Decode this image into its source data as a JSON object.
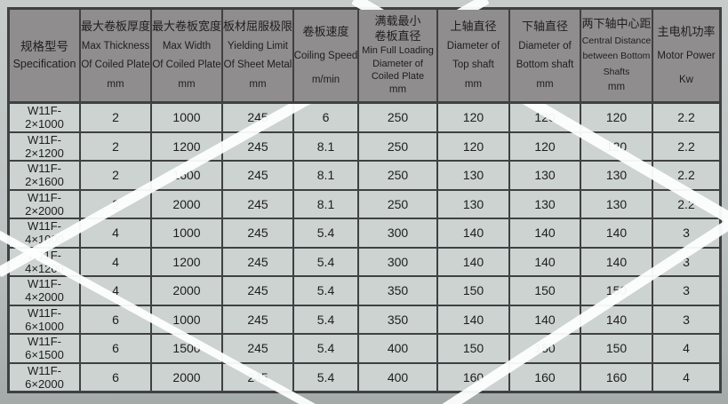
{
  "colors": {
    "page_bg_top": "#c7cccb",
    "page_bg_bottom": "#a4aaa9",
    "header_bg": "#908d8e",
    "cell_bg": "#ccd3d1",
    "border": "#3f4042",
    "text": "#1e1e1e",
    "stripe": "#fdfefe"
  },
  "table": {
    "columns": [
      {
        "key": "specification",
        "zh": [
          "规格型号"
        ],
        "en": [
          "Specification"
        ],
        "unit": ""
      },
      {
        "key": "max-thickness",
        "zh": [
          "最大卷板厚度"
        ],
        "en": [
          "Max Thickness",
          "Of Coiled Plate"
        ],
        "unit": "mm"
      },
      {
        "key": "max-width",
        "zh": [
          "最大卷板宽度"
        ],
        "en": [
          "Max Width",
          "Of Coiled Plate"
        ],
        "unit": "mm"
      },
      {
        "key": "yielding-limit",
        "zh": [
          "板材屈服极限"
        ],
        "en": [
          "Yielding Limit",
          "Of Sheet Metal"
        ],
        "unit": "mm"
      },
      {
        "key": "coiling-speed",
        "zh": [
          "卷板速度"
        ],
        "en": [
          "Coiling Speed"
        ],
        "unit": "m/min"
      },
      {
        "key": "min-coil-diameter",
        "zh": [
          "满载最小",
          "卷板直径"
        ],
        "en": [
          "Min Full Loading",
          "Diameter of",
          "Coiled Plate"
        ],
        "unit": "mm"
      },
      {
        "key": "top-shaft-diameter",
        "zh": [
          "上轴直径"
        ],
        "en": [
          "Diameter of",
          "Top shaft"
        ],
        "unit": "mm"
      },
      {
        "key": "bottom-shaft-diameter",
        "zh": [
          "下轴直径"
        ],
        "en": [
          "Diameter of",
          "Bottom shaft"
        ],
        "unit": "mm"
      },
      {
        "key": "bottom-shafts-distance",
        "zh": [
          "两下轴中心距"
        ],
        "en": [
          "Central Distance",
          "between Bottom",
          "Shafts"
        ],
        "unit": "mm"
      },
      {
        "key": "motor-power",
        "zh": [
          "主电机功率"
        ],
        "en": [
          "Motor Power"
        ],
        "unit": "Kw"
      }
    ],
    "rows": [
      [
        "W11F-2×1000",
        "2",
        "1000",
        "245",
        "6",
        "250",
        "120",
        "120",
        "120",
        "2.2"
      ],
      [
        "W11F-2×1200",
        "2",
        "1200",
        "245",
        "8.1",
        "250",
        "120",
        "120",
        "120",
        "2.2"
      ],
      [
        "W11F-2×1600",
        "2",
        "1600",
        "245",
        "8.1",
        "250",
        "130",
        "130",
        "130",
        "2.2"
      ],
      [
        "W11F-2×2000",
        "2",
        "2000",
        "245",
        "8.1",
        "250",
        "130",
        "130",
        "130",
        "2.2"
      ],
      [
        "W11F-4×1000",
        "4",
        "1000",
        "245",
        "5.4",
        "300",
        "140",
        "140",
        "140",
        "3"
      ],
      [
        "W11F-4×1200",
        "4",
        "1200",
        "245",
        "5.4",
        "300",
        "140",
        "140",
        "140",
        "3"
      ],
      [
        "W11F-4×2000",
        "4",
        "2000",
        "245",
        "5.4",
        "350",
        "150",
        "150",
        "150",
        "3"
      ],
      [
        "W11F-6×1000",
        "6",
        "1000",
        "245",
        "5.4",
        "350",
        "140",
        "140",
        "140",
        "3"
      ],
      [
        "W11F-6×1500",
        "6",
        "1500",
        "245",
        "5.4",
        "400",
        "150",
        "150",
        "150",
        "4"
      ],
      [
        "W11F-6×2000",
        "6",
        "2000",
        "245",
        "5.4",
        "400",
        "160",
        "160",
        "160",
        "4"
      ]
    ]
  }
}
